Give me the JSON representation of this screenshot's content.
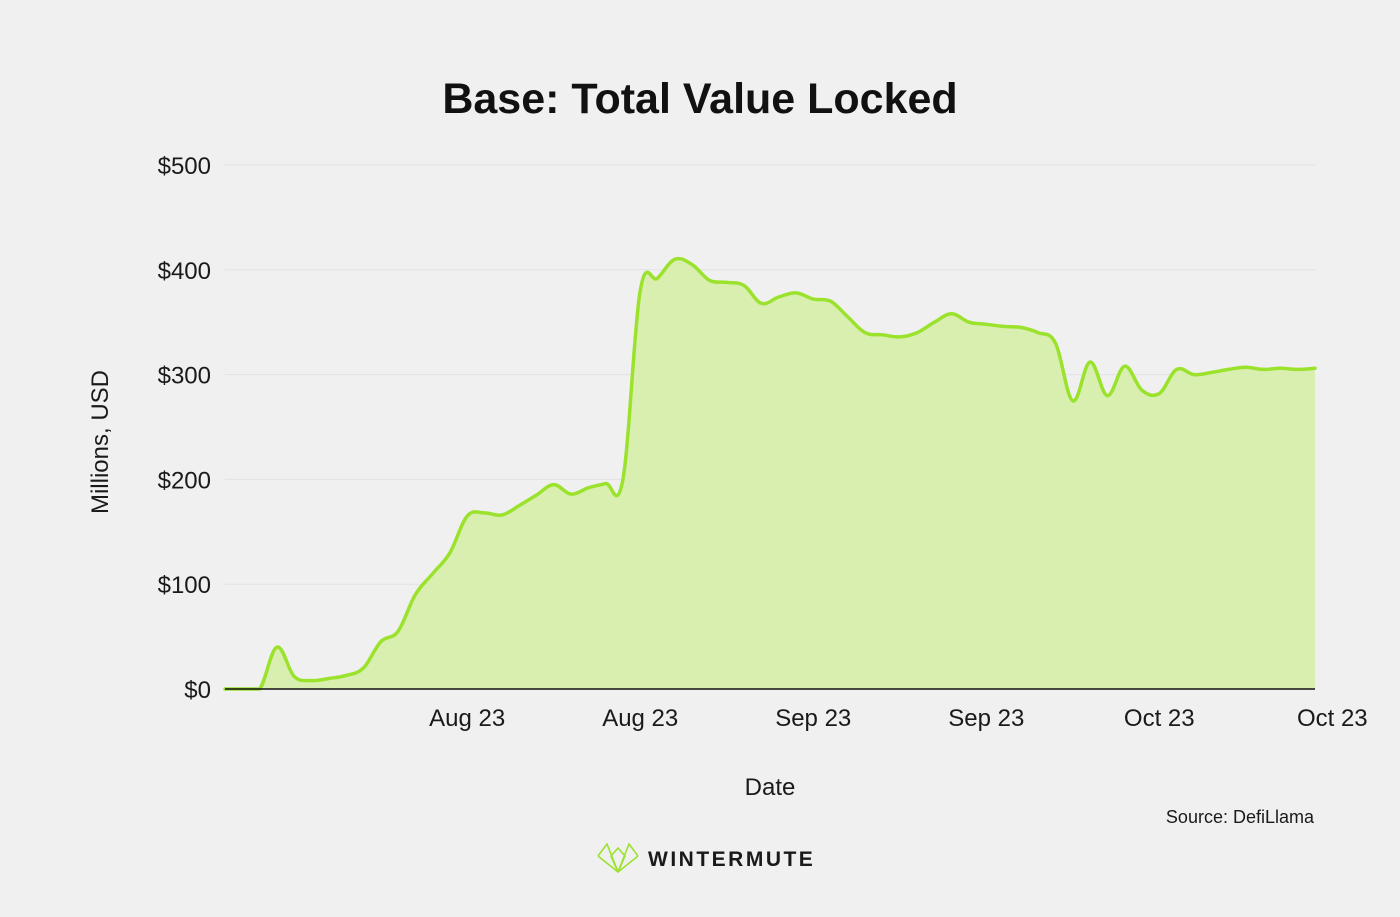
{
  "chart_data": {
    "type": "area",
    "title": "Base: Total Value Locked",
    "xlabel": "Date",
    "ylabel": "Millions, USD",
    "y_tick_labels": [
      "$0",
      "$100",
      "$200",
      "$300",
      "$400",
      "$500"
    ],
    "y_ticks": [
      0,
      100,
      200,
      300,
      400,
      500
    ],
    "ylim": [
      0,
      500
    ],
    "x_tick_labels": [
      "Aug 23",
      "Aug 23",
      "Sep 23",
      "Sep 23",
      "Oct 23",
      "Oct 23"
    ],
    "x_ticks": [
      14,
      24,
      34,
      44,
      54,
      64
    ],
    "xlim": [
      0,
      63
    ],
    "grid": "horizontal",
    "source": "Source: DefiLlama",
    "series": [
      {
        "color": "#9be22d",
        "fill": "#d9efb0",
        "x": [
          0,
          1,
          2,
          3,
          4,
          5,
          6,
          7,
          8,
          9,
          10,
          11,
          12,
          13,
          14,
          15,
          16,
          17,
          18,
          19,
          20,
          21,
          22,
          23,
          24,
          25,
          26,
          27,
          28,
          29,
          30,
          31,
          32,
          33,
          34,
          35,
          36,
          37,
          38,
          39,
          40,
          41,
          42,
          43,
          44,
          45,
          46,
          47,
          48,
          49,
          50,
          51,
          52,
          53,
          54,
          55,
          56,
          57,
          58,
          59,
          60,
          61,
          62,
          63
        ],
        "values": [
          0,
          0,
          0,
          40,
          12,
          8,
          10,
          13,
          20,
          45,
          55,
          90,
          110,
          130,
          165,
          168,
          166,
          175,
          185,
          195,
          186,
          192,
          196,
          200,
          380,
          392,
          410,
          405,
          390,
          388,
          385,
          368,
          374,
          378,
          372,
          370,
          355,
          340,
          338,
          336,
          340,
          350,
          358,
          350,
          348,
          346,
          345,
          340,
          330,
          275,
          312,
          280,
          308,
          285,
          282,
          305,
          300,
          302,
          305,
          307,
          305,
          306,
          305,
          306
        ]
      }
    ]
  },
  "brand": {
    "name": "WINTERMUTE",
    "logo_icon": "wintermute-logo-icon",
    "logo_color": "#9be22d"
  }
}
